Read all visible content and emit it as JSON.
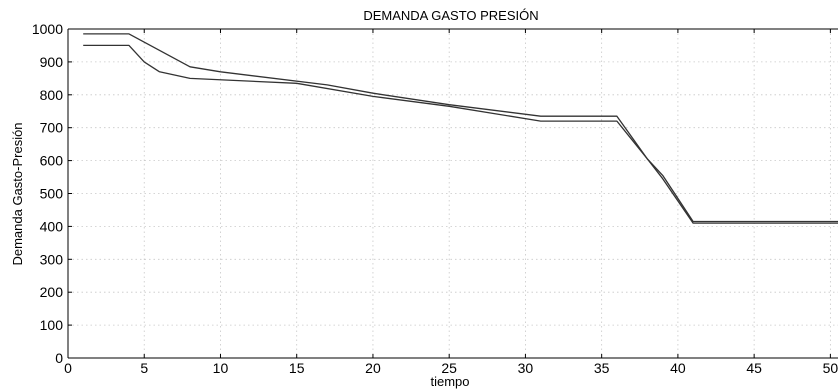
{
  "chart_data": {
    "type": "line",
    "title": "DEMANDA GASTO PRESIÓN",
    "xlabel": "tiempo",
    "ylabel": "Demanda Gasto-Presión",
    "xlim": [
      0,
      50.5
    ],
    "ylim": [
      0,
      1000
    ],
    "xticks": [
      0,
      5,
      10,
      15,
      20,
      25,
      30,
      35,
      40,
      45,
      50
    ],
    "yticks": [
      0,
      100,
      200,
      300,
      400,
      500,
      600,
      700,
      800,
      900,
      1000
    ],
    "grid": true,
    "series": [
      {
        "color": "#333333",
        "x": [
          1,
          4,
          8,
          10,
          17,
          20,
          25,
          31,
          36,
          38,
          39,
          41,
          50.5
        ],
        "y": [
          985,
          985,
          885,
          870,
          830,
          805,
          770,
          735,
          735,
          605,
          555,
          415,
          415
        ]
      },
      {
        "color": "#333333",
        "x": [
          1,
          4,
          5,
          6,
          8,
          15,
          20,
          25,
          31,
          36,
          38,
          39,
          41,
          50.5
        ],
        "y": [
          950,
          950,
          900,
          870,
          850,
          835,
          795,
          765,
          720,
          720,
          605,
          545,
          410,
          410
        ]
      }
    ]
  }
}
